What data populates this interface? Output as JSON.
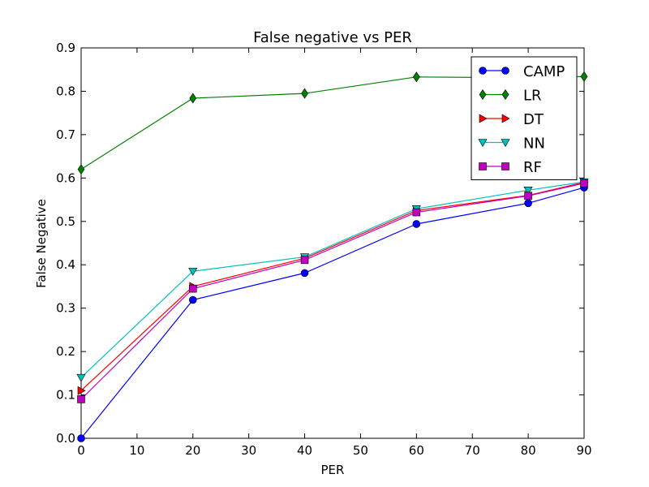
{
  "chart_data": {
    "type": "line",
    "title": "False negative vs PER",
    "xlabel": "PER",
    "ylabel": "False Negative",
    "xlim": [
      0,
      90
    ],
    "ylim": [
      0.0,
      0.9
    ],
    "xticks": [
      0,
      10,
      20,
      30,
      40,
      50,
      60,
      70,
      80,
      90
    ],
    "xtick_labels": [
      "0",
      "10",
      "20",
      "30",
      "40",
      "50",
      "60",
      "70",
      "80",
      "90"
    ],
    "yticks": [
      0.0,
      0.1,
      0.2,
      0.3,
      0.4,
      0.5,
      0.6,
      0.7,
      0.8,
      0.9
    ],
    "ytick_labels": [
      "0.0",
      "0.1",
      "0.2",
      "0.3",
      "0.4",
      "0.5",
      "0.6",
      "0.7",
      "0.8",
      "0.9"
    ],
    "grid": false,
    "legend_position": "top-right",
    "x": [
      0,
      20,
      40,
      60,
      80,
      90
    ],
    "series": [
      {
        "name": "CAMP",
        "color": "#0000ff",
        "marker": "circle",
        "values": [
          0.0,
          0.319,
          0.381,
          0.494,
          0.542,
          0.578
        ]
      },
      {
        "name": "LR",
        "color": "#008000",
        "marker": "diamond",
        "values": [
          0.62,
          0.784,
          0.795,
          0.833,
          0.831,
          0.834
        ]
      },
      {
        "name": "DT",
        "color": "#ff0000",
        "marker": "triangle-right",
        "values": [
          0.11,
          0.35,
          0.415,
          0.525,
          0.56,
          0.59
        ]
      },
      {
        "name": "NN",
        "color": "#00bfbf",
        "marker": "triangle-down",
        "values": [
          0.14,
          0.385,
          0.418,
          0.529,
          0.572,
          0.591
        ]
      },
      {
        "name": "RF",
        "color": "#bf00bf",
        "marker": "square",
        "values": [
          0.09,
          0.345,
          0.411,
          0.521,
          0.559,
          0.588
        ]
      }
    ]
  }
}
